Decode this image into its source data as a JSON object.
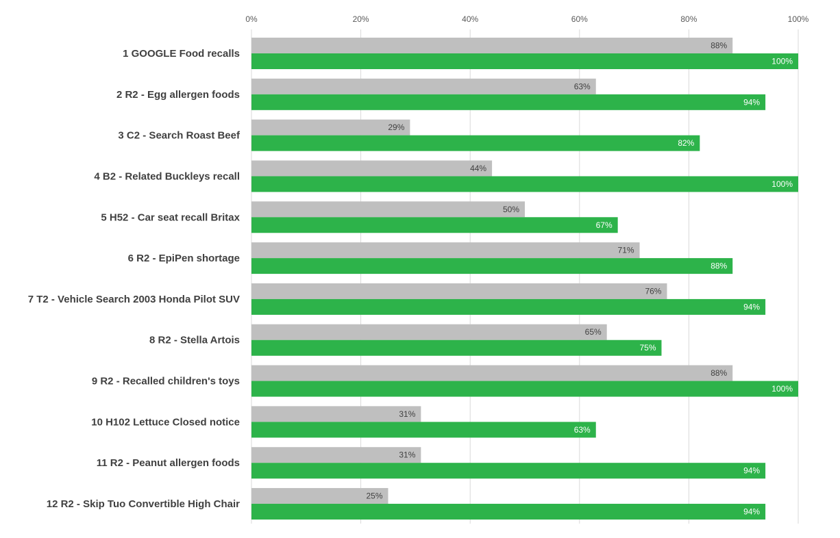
{
  "chart_data": {
    "type": "bar",
    "orientation": "horizontal",
    "categories": [
      "1 GOOGLE Food recalls",
      "2 R2 - Egg allergen foods",
      "3 C2 - Search Roast Beef",
      "4 B2 - Related Buckleys recall",
      "5 H52 - Car seat recall Britax",
      "6 R2 - EpiPen shortage",
      "7 T2 - Vehicle Search 2003 Honda Pilot SUV",
      "8 R2 - Stella Artois",
      "9 R2 - Recalled children's toys",
      "10 H102 Lettuce Closed notice",
      "11 R2 - Peanut allergen foods",
      "12 R2 - Skip Tuo Convertible High Chair"
    ],
    "series": [
      {
        "color": "#bfbfbf",
        "values": [
          88,
          63,
          29,
          44,
          50,
          71,
          76,
          65,
          88,
          31,
          31,
          25
        ],
        "labels": [
          "88%",
          "63%",
          "29%",
          "44%",
          "50%",
          "71%",
          "76%",
          "65%",
          "88%",
          "31%",
          "31%",
          "25%"
        ]
      },
      {
        "color": "#2db34a",
        "values": [
          100,
          94,
          82,
          100,
          67,
          88,
          94,
          75,
          100,
          63,
          94,
          94
        ],
        "labels": [
          "100%",
          "94%",
          "82%",
          "100%",
          "67%",
          "88%",
          "94%",
          "75%",
          "100%",
          "63%",
          "94%",
          "94%"
        ]
      }
    ],
    "xlim": [
      0,
      100
    ],
    "x_ticks": [
      0,
      20,
      40,
      60,
      80,
      100
    ],
    "x_tick_labels": [
      "0%",
      "20%",
      "40%",
      "60%",
      "80%",
      "100%"
    ],
    "x_axis_position": "top",
    "grid": true,
    "title": "",
    "xlabel": "",
    "ylabel": ""
  }
}
